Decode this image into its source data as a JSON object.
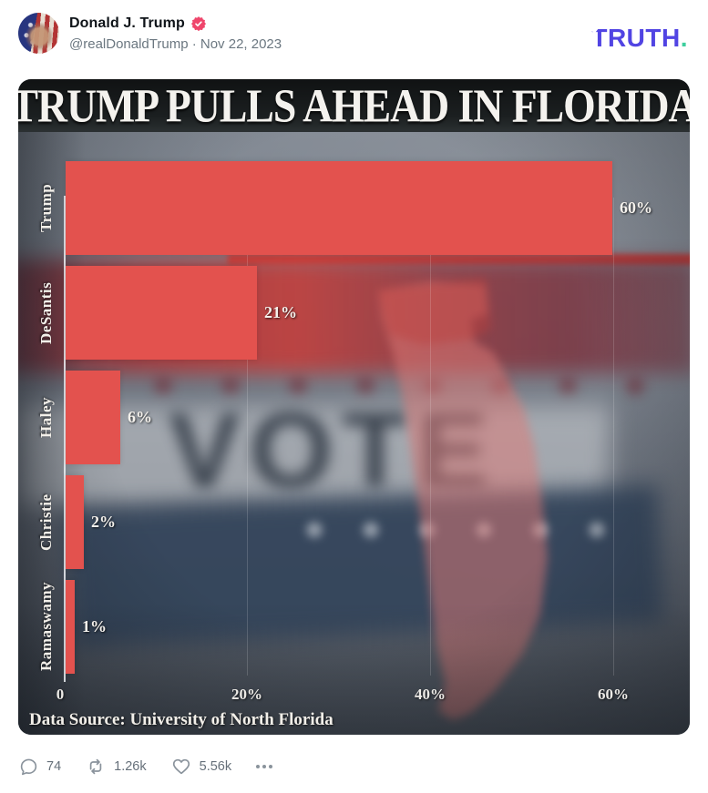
{
  "header": {
    "author": "Donald J. Trump",
    "handle": "@realDonaldTrump",
    "separator": "·",
    "date": "Nov 22, 2023",
    "handle_line": "@realDonaldTrump · Nov 22, 2023",
    "brand_text": "TRUTH",
    "brand_dot": "."
  },
  "chart_data": {
    "type": "bar",
    "orientation": "horizontal",
    "title": "TRUMP PULLS AHEAD IN FLORIDA",
    "categories": [
      "Trump",
      "DeSantis",
      "Haley",
      "Christie",
      "Ramaswamy"
    ],
    "values": [
      60,
      21,
      6,
      2,
      1
    ],
    "value_labels": [
      "60%",
      "21%",
      "6%",
      "2%",
      "1%"
    ],
    "x_ticks": [
      "0",
      "20%",
      "40%",
      "60%"
    ],
    "x_tick_values": [
      0,
      20,
      40,
      60
    ],
    "xlim": [
      0,
      60
    ],
    "grid": "faint vertical gridlines at 20/40/60",
    "legend": "none",
    "source": "Data Source: University of North Florida",
    "background_text": "VOTE",
    "bar_color": "#e3524e"
  },
  "engagement": {
    "reply_count": "74",
    "repost_count": "1.26k",
    "like_count": "5.56k"
  },
  "colors": {
    "brand_purple": "#5144e3",
    "brand_teal": "#3ecf9e",
    "badge_pink": "#ef456b",
    "bar_red": "#e3524e",
    "chart_bg_gray": "#6e7681"
  }
}
